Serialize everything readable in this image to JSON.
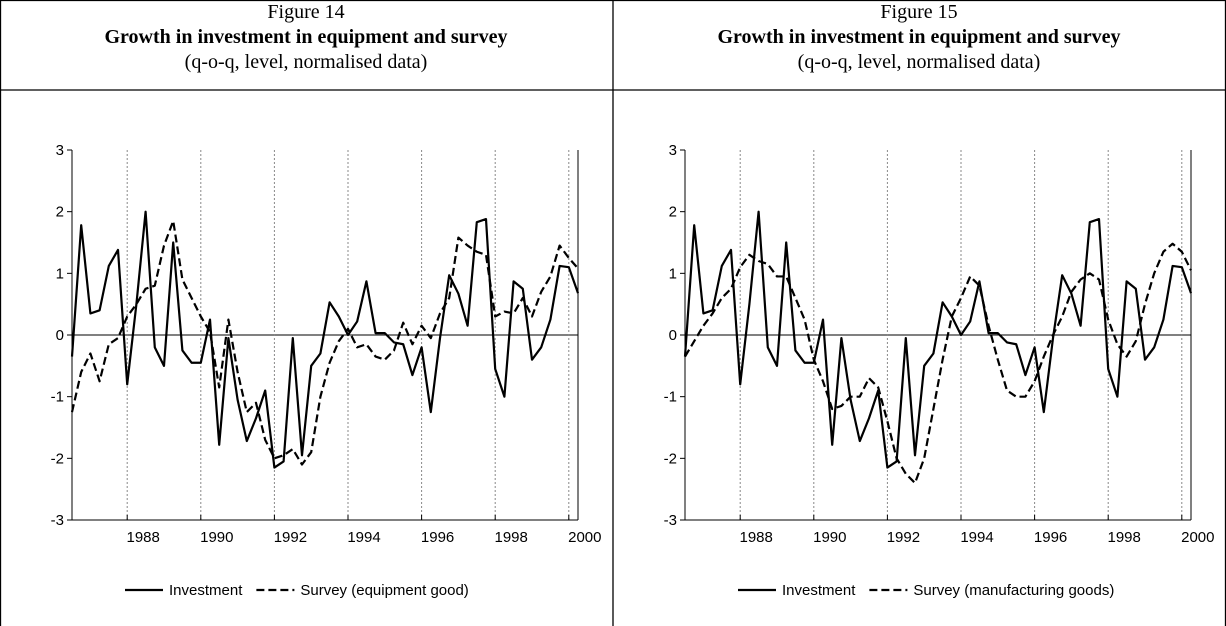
{
  "chart_data": [
    {
      "type": "line",
      "figure_label": "Figure 14",
      "title": "Growth in investment in equipment and survey",
      "subtitle": "(q-o-q, level, normalised data)",
      "x": [
        1986.5,
        1986.75,
        1987,
        1987.25,
        1987.5,
        1987.75,
        1988,
        1988.25,
        1988.5,
        1988.75,
        1989,
        1989.25,
        1989.5,
        1989.75,
        1990,
        1990.25,
        1990.5,
        1990.75,
        1991,
        1991.25,
        1991.5,
        1991.75,
        1992,
        1992.25,
        1992.5,
        1992.75,
        1993,
        1993.25,
        1993.5,
        1993.75,
        1994,
        1994.25,
        1994.5,
        1994.75,
        1995,
        1995.25,
        1995.5,
        1995.75,
        1996,
        1996.25,
        1996.5,
        1996.75,
        1997,
        1997.25,
        1997.5,
        1997.75,
        1998,
        1998.25,
        1998.5,
        1998.75,
        1999,
        1999.25,
        1999.5,
        1999.75,
        2000,
        2000.25
      ],
      "xlim": [
        1986.5,
        2000.25
      ],
      "xticks": [
        1988,
        1990,
        1992,
        1994,
        1996,
        1998,
        2000
      ],
      "ylim": [
        -3,
        3
      ],
      "yticks": [
        -3,
        -2,
        -1,
        0,
        1,
        2,
        3
      ],
      "grid": true,
      "zero_line": true,
      "legend": "bottom",
      "series": [
        {
          "name": "Investment",
          "color": "#000000",
          "style": "solid",
          "values": [
            -0.35,
            1.78,
            0.35,
            0.4,
            1.12,
            1.38,
            -0.8,
            0.5,
            2.0,
            -0.2,
            -0.5,
            1.5,
            -0.25,
            -0.45,
            -0.45,
            0.25,
            -1.78,
            -0.05,
            -1.05,
            -1.72,
            -1.35,
            -0.9,
            -2.15,
            -2.05,
            -0.05,
            -1.95,
            -0.5,
            -0.3,
            0.53,
            0.3,
            0.0,
            0.22,
            0.87,
            0.03,
            0.03,
            -0.12,
            -0.15,
            -0.65,
            -0.2,
            -1.25,
            -0.05,
            0.97,
            0.67,
            0.15,
            1.83,
            1.88,
            -0.55,
            -1.0,
            0.87,
            0.75,
            -0.4,
            -0.2,
            0.25,
            1.12,
            1.1,
            0.68
          ]
        },
        {
          "name": "Survey (equipment good)",
          "color": "#000000",
          "style": "dashed",
          "values": [
            -1.25,
            -0.6,
            -0.3,
            -0.75,
            -0.15,
            -0.05,
            0.3,
            0.5,
            0.75,
            0.8,
            1.45,
            1.85,
            0.9,
            0.6,
            0.3,
            0.05,
            -0.85,
            0.25,
            -0.6,
            -1.25,
            -1.1,
            -1.7,
            -2.0,
            -1.95,
            -1.85,
            -2.1,
            -1.9,
            -1.0,
            -0.45,
            -0.1,
            0.1,
            -0.2,
            -0.15,
            -0.35,
            -0.4,
            -0.25,
            0.2,
            -0.15,
            0.15,
            -0.05,
            0.35,
            0.6,
            1.58,
            1.45,
            1.35,
            1.3,
            0.3,
            0.38,
            0.35,
            0.6,
            0.3,
            0.7,
            0.95,
            1.45,
            1.25,
            1.08
          ]
        }
      ]
    },
    {
      "type": "line",
      "figure_label": "Figure 15",
      "title": "Growth in investment in equipment and survey",
      "subtitle": "(q-o-q, level, normalised data)",
      "x": [
        1986.5,
        1986.75,
        1987,
        1987.25,
        1987.5,
        1987.75,
        1988,
        1988.25,
        1988.5,
        1988.75,
        1989,
        1989.25,
        1989.5,
        1989.75,
        1990,
        1990.25,
        1990.5,
        1990.75,
        1991,
        1991.25,
        1991.5,
        1991.75,
        1992,
        1992.25,
        1992.5,
        1992.75,
        1993,
        1993.25,
        1993.5,
        1993.75,
        1994,
        1994.25,
        1994.5,
        1994.75,
        1995,
        1995.25,
        1995.5,
        1995.75,
        1996,
        1996.25,
        1996.5,
        1996.75,
        1997,
        1997.25,
        1997.5,
        1997.75,
        1998,
        1998.25,
        1998.5,
        1998.75,
        1999,
        1999.25,
        1999.5,
        1999.75,
        2000,
        2000.25
      ],
      "xlim": [
        1986.5,
        2000.25
      ],
      "xticks": [
        1988,
        1990,
        1992,
        1994,
        1996,
        1998,
        2000
      ],
      "ylim": [
        -3,
        3
      ],
      "yticks": [
        -3,
        -2,
        -1,
        0,
        1,
        2,
        3
      ],
      "grid": true,
      "zero_line": true,
      "legend": "bottom",
      "series": [
        {
          "name": "Investment",
          "color": "#000000",
          "style": "solid",
          "values": [
            -0.35,
            1.78,
            0.35,
            0.4,
            1.12,
            1.38,
            -0.8,
            0.5,
            2.0,
            -0.2,
            -0.5,
            1.5,
            -0.25,
            -0.45,
            -0.45,
            0.25,
            -1.78,
            -0.05,
            -1.05,
            -1.72,
            -1.35,
            -0.9,
            -2.15,
            -2.05,
            -0.05,
            -1.95,
            -0.5,
            -0.3,
            0.53,
            0.3,
            0.0,
            0.22,
            0.87,
            0.03,
            0.03,
            -0.12,
            -0.15,
            -0.65,
            -0.2,
            -1.25,
            -0.05,
            0.97,
            0.67,
            0.15,
            1.83,
            1.88,
            -0.55,
            -1.0,
            0.87,
            0.75,
            -0.4,
            -0.2,
            0.25,
            1.12,
            1.1,
            0.68
          ]
        },
        {
          "name": "Survey (manufacturing goods)",
          "color": "#000000",
          "style": "dashed",
          "values": [
            -0.35,
            -0.1,
            0.15,
            0.35,
            0.6,
            0.75,
            1.1,
            1.3,
            1.2,
            1.15,
            0.95,
            0.95,
            0.6,
            0.25,
            -0.4,
            -0.75,
            -1.2,
            -1.15,
            -1.0,
            -1.0,
            -0.7,
            -0.85,
            -1.4,
            -2.0,
            -2.25,
            -2.4,
            -2.0,
            -1.2,
            -0.4,
            0.3,
            0.6,
            0.95,
            0.8,
            0.15,
            -0.4,
            -0.9,
            -1.0,
            -1.0,
            -0.75,
            -0.35,
            0.0,
            0.3,
            0.7,
            0.9,
            1.0,
            0.9,
            0.25,
            -0.15,
            -0.35,
            -0.1,
            0.5,
            1.0,
            1.35,
            1.48,
            1.35,
            1.05
          ]
        }
      ]
    }
  ]
}
